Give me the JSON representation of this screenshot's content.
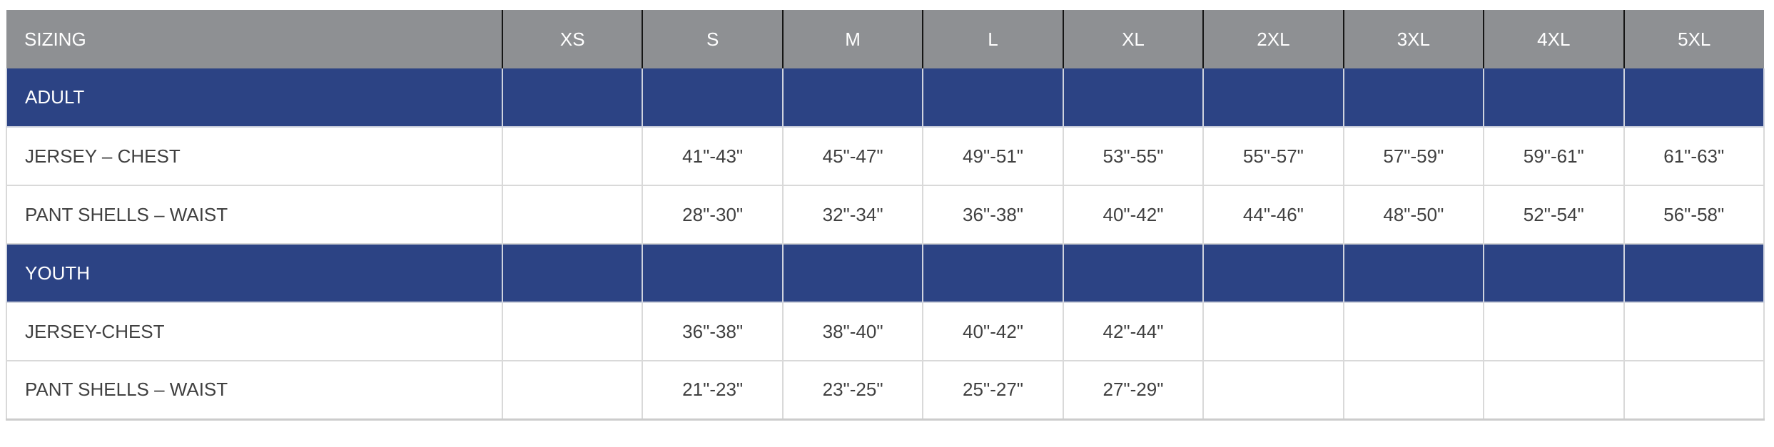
{
  "colors": {
    "header_bg": "#8e9093",
    "header_text": "#ffffff",
    "section_bg": "#2c4384",
    "section_text": "#ffffff",
    "body_text": "#404040",
    "header_divider": "#151515",
    "body_divider": "#d9d9d9"
  },
  "chart_data": {
    "type": "table",
    "title": "SIZING",
    "columns": [
      "SIZING",
      "XS",
      "S",
      "M",
      "L",
      "XL",
      "2XL",
      "3XL",
      "4XL",
      "5XL"
    ],
    "sections": [
      {
        "label": "ADULT",
        "rows": [
          {
            "label": "JERSEY – CHEST",
            "values": [
              "",
              "41\"-43\"",
              "45\"-47\"",
              "49\"-51\"",
              "53\"-55\"",
              "55\"-57\"",
              "57\"-59\"",
              "59\"-61\"",
              "61\"-63\""
            ]
          },
          {
            "label": "PANT SHELLS – WAIST",
            "values": [
              "",
              "28\"-30\"",
              "32\"-34\"",
              "36\"-38\"",
              "40\"-42\"",
              "44\"-46\"",
              "48\"-50\"",
              "52\"-54\"",
              "56\"-58\""
            ]
          }
        ]
      },
      {
        "label": "YOUTH",
        "rows": [
          {
            "label": "JERSEY-CHEST",
            "values": [
              "",
              "36\"-38\"",
              "38\"-40\"",
              "40\"-42\"",
              "42\"-44\"",
              "",
              "",
              "",
              ""
            ]
          },
          {
            "label": "PANT SHELLS – WAIST",
            "values": [
              "",
              "21\"-23\"",
              "23\"-25\"",
              "25\"-27\"",
              "27\"-29\"",
              "",
              "",
              "",
              ""
            ]
          }
        ]
      }
    ]
  }
}
